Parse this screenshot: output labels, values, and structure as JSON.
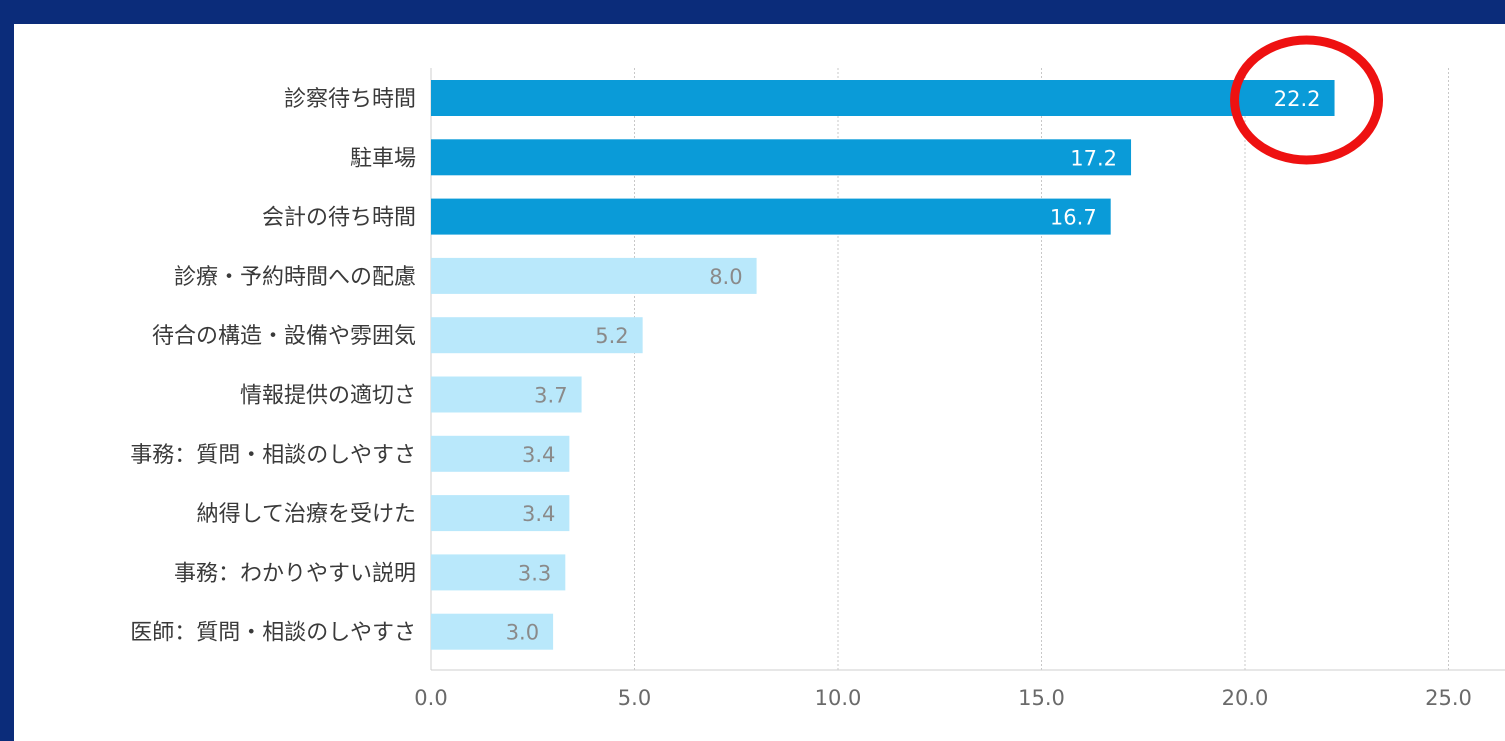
{
  "chart_data": {
    "type": "bar",
    "orientation": "horizontal",
    "categories": [
      "診察待ち時間",
      "駐車場",
      "会計の待ち時間",
      "診療・予約時間への配慮",
      "待合の構造・設備や雰囲気",
      "情報提供の適切さ",
      "事務：質問・相談のしやすさ",
      "納得して治療を受けた",
      "事務：わかりやすい説明",
      "医師：質問・相談のしやすさ"
    ],
    "values": [
      22.2,
      17.2,
      16.7,
      8.0,
      5.2,
      3.7,
      3.4,
      3.4,
      3.3,
      3.0
    ],
    "value_labels": [
      "22.2",
      "17.2",
      "16.7",
      "8.0",
      "5.2",
      "3.7",
      "3.4",
      "3.4",
      "3.3",
      "3.0"
    ],
    "highlight_count": 3,
    "xlim": [
      0,
      25
    ],
    "xticks": [
      "0.0",
      "5.0",
      "10.0",
      "15.0",
      "20.0",
      "25.0"
    ],
    "xtick_values": [
      0,
      5,
      10,
      15,
      20,
      25
    ],
    "grid": "vertical-dotted",
    "title": "",
    "xlabel": "",
    "ylabel": "",
    "annotation": {
      "type": "circle",
      "target_index": 0
    },
    "colors": {
      "highlight_bar": "#0a9bd8",
      "normal_bar": "#b9e8fb",
      "highlight_label": "#ffffff",
      "normal_label": "#8a8a8a",
      "category_text": "#3a3a3a",
      "tick_text": "#6a6a6a",
      "grid": "#c8c8c8",
      "axis": "#cfcfcf",
      "annotation": "#ee1111",
      "frame": "#0b2c7a"
    }
  }
}
